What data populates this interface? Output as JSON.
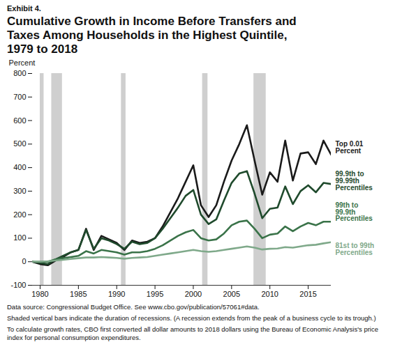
{
  "chart_data": {
    "type": "line",
    "label": "Exhibit 4.",
    "title": "Cumulative Growth in Income Before Transfers and Taxes Among Households in the Highest Quintile, 1979 to 2018",
    "y_label": "Percent",
    "x": [
      1979,
      1980,
      1981,
      1982,
      1983,
      1984,
      1985,
      1986,
      1987,
      1988,
      1989,
      1990,
      1991,
      1992,
      1993,
      1994,
      1995,
      1996,
      1997,
      1998,
      1999,
      2000,
      2001,
      2002,
      2003,
      2004,
      2005,
      2006,
      2007,
      2008,
      2009,
      2010,
      2011,
      2012,
      2013,
      2014,
      2015,
      2016,
      2017,
      2018
    ],
    "series": [
      {
        "name": "Top 0.01 Percent",
        "color": "#1a1a1a",
        "values": [
          0,
          -10,
          -15,
          5,
          20,
          40,
          50,
          140,
          50,
          110,
          95,
          80,
          50,
          90,
          80,
          85,
          100,
          150,
          210,
          270,
          340,
          410,
          240,
          190,
          240,
          340,
          430,
          500,
          580,
          430,
          285,
          380,
          340,
          515,
          345,
          460,
          465,
          415,
          515,
          455
        ]
      },
      {
        "name": "99.9th to 99.99th Percentiles",
        "color": "#1f4a2c",
        "values": [
          0,
          -5,
          -10,
          10,
          25,
          40,
          50,
          135,
          55,
          100,
          90,
          75,
          55,
          85,
          75,
          80,
          100,
          140,
          185,
          230,
          280,
          305,
          200,
          160,
          180,
          260,
          335,
          375,
          385,
          290,
          185,
          225,
          230,
          320,
          245,
          300,
          325,
          295,
          335,
          330
        ]
      },
      {
        "name": "99th to 99.9th Percentiles",
        "color": "#3a7349",
        "values": [
          0,
          0,
          0,
          10,
          15,
          20,
          25,
          45,
          35,
          50,
          45,
          40,
          30,
          40,
          40,
          45,
          55,
          70,
          90,
          110,
          125,
          135,
          100,
          90,
          95,
          120,
          155,
          170,
          175,
          140,
          100,
          115,
          120,
          150,
          130,
          150,
          165,
          155,
          170,
          170
        ]
      },
      {
        "name": "81st to 99th Percentiles",
        "color": "#7fa98a",
        "values": [
          0,
          0,
          2,
          5,
          8,
          12,
          15,
          18,
          18,
          20,
          18,
          16,
          13,
          16,
          18,
          20,
          25,
          30,
          35,
          40,
          45,
          50,
          45,
          42,
          45,
          50,
          55,
          60,
          65,
          60,
          52,
          55,
          56,
          62,
          60,
          65,
          70,
          72,
          78,
          83
        ]
      }
    ],
    "recessions": [
      {
        "start": 1980.0,
        "end": 1980.5
      },
      {
        "start": 1981.5,
        "end": 1982.9
      },
      {
        "start": 1990.6,
        "end": 1991.2
      },
      {
        "start": 2001.2,
        "end": 2001.9
      },
      {
        "start": 2007.9,
        "end": 2009.5
      }
    ],
    "xlim": [
      1979,
      2018
    ],
    "xticks": [
      1980,
      1985,
      1990,
      1995,
      2000,
      2005,
      2010,
      2015
    ],
    "ylim": [
      -100,
      800
    ],
    "yticks": [
      -100,
      0,
      100,
      200,
      300,
      400,
      500,
      600,
      700,
      800
    ],
    "grid": false,
    "notes": [
      "Data source: Congressional Budget Office. See www.cbo.gov/publication/57061#data.",
      "Shaded vertical bars indicate the duration of recessions. (A recession extends from the peak of a business cycle to its trough.)",
      "To calculate growth rates, CBO first converted all dollar amounts to 2018 dollars using the Bureau of Economic Analysis's price index for personal consumption expenditures."
    ]
  }
}
